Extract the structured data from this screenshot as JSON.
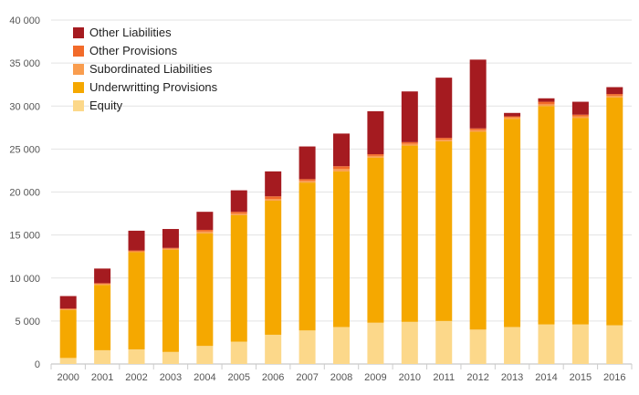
{
  "chart_data": {
    "type": "bar",
    "stacked": true,
    "categories": [
      "2000",
      "2001",
      "2002",
      "2003",
      "2004",
      "2005",
      "2006",
      "2007",
      "2008",
      "2009",
      "2010",
      "2011",
      "2012",
      "2013",
      "2014",
      "2015",
      "2016"
    ],
    "series": [
      {
        "name": "Equity",
        "color": "#fcd88a",
        "values": [
          700,
          1600,
          1700,
          1400,
          2100,
          2600,
          3400,
          3900,
          4300,
          4800,
          4900,
          5000,
          4000,
          4300,
          4600,
          4600,
          4500
        ]
      },
      {
        "name": "Underwritting Provisions",
        "color": "#f5a800",
        "values": [
          5600,
          7600,
          11300,
          11900,
          13100,
          14700,
          15600,
          17200,
          18100,
          19200,
          20500,
          20900,
          23000,
          24200,
          25400,
          24000,
          26500
        ]
      },
      {
        "name": "Subordinated Liabilities",
        "color": "#f99d4f",
        "values": [
          50,
          100,
          100,
          100,
          200,
          200,
          200,
          200,
          300,
          200,
          200,
          200,
          200,
          200,
          200,
          200,
          200
        ]
      },
      {
        "name": "Other Provisions",
        "color": "#f26b2a",
        "values": [
          100,
          100,
          100,
          100,
          200,
          200,
          300,
          200,
          300,
          200,
          200,
          200,
          200,
          100,
          300,
          200,
          200
        ]
      },
      {
        "name": "Other Liabilities",
        "color": "#a51b20",
        "values": [
          1450,
          1700,
          2300,
          2200,
          2100,
          2500,
          2900,
          3800,
          3800,
          5000,
          5900,
          7000,
          8000,
          400,
          400,
          1500,
          800
        ]
      }
    ],
    "legend_order": [
      "Other Liabilities",
      "Other Provisions",
      "Subordinated Liabilities",
      "Underwritting Provisions",
      "Equity"
    ],
    "y_ticks": [
      0,
      5000,
      10000,
      15000,
      20000,
      25000,
      30000,
      35000,
      40000
    ],
    "y_tick_labels": [
      "0",
      "5 000",
      "10 000",
      "15 000",
      "20 000",
      "25 000",
      "30 000",
      "35 000",
      "40 000"
    ],
    "ylim": [
      0,
      40000
    ],
    "grid": true,
    "legend_position": "top-left",
    "title": "",
    "xlabel": "",
    "ylabel": ""
  }
}
